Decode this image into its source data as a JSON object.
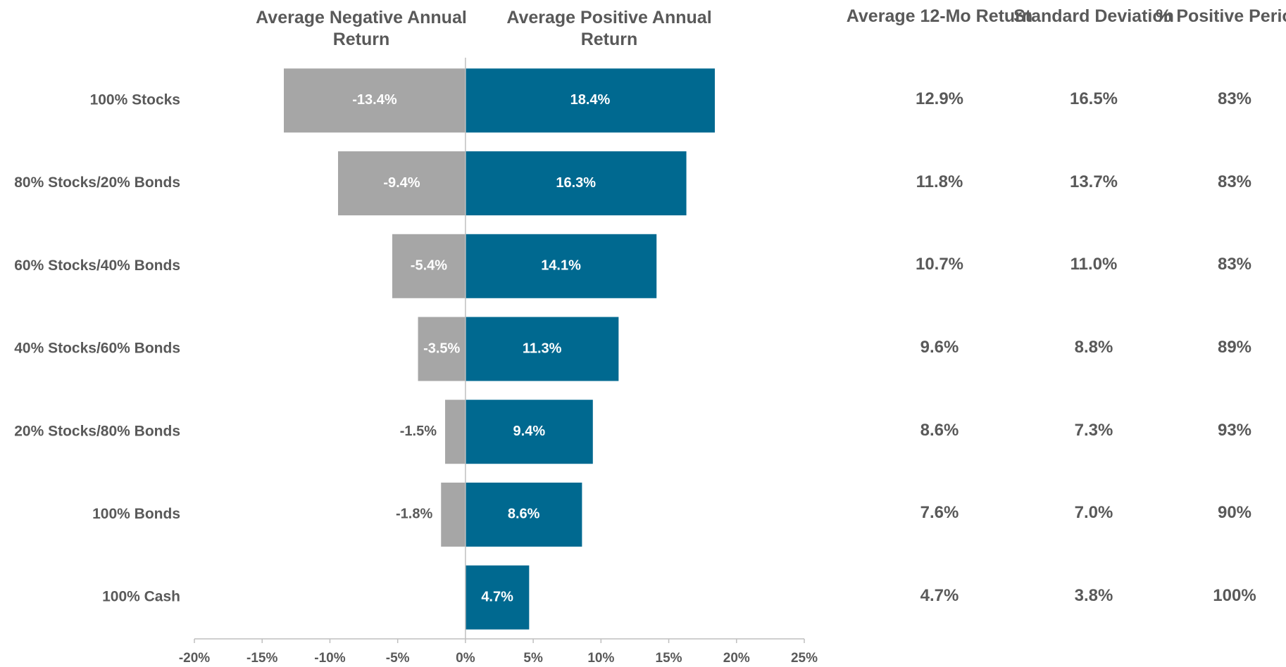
{
  "chart_data": {
    "type": "bar",
    "orientation": "horizontal",
    "categories": [
      "100% Stocks",
      "80% Stocks/20% Bonds",
      "60% Stocks/40% Bonds",
      "40% Stocks/60% Bonds",
      "20% Stocks/80% Bonds",
      "100% Bonds",
      "100% Cash"
    ],
    "series": [
      {
        "name": "Average Negative Annual Return",
        "color": "#a6a6a6",
        "values": [
          -13.4,
          -9.4,
          -5.4,
          -3.5,
          -1.5,
          -1.8,
          null
        ],
        "value_labels": [
          "-13.4%",
          "-9.4%",
          "-5.4%",
          "-3.5%",
          "-1.5%",
          "-1.8%",
          null
        ]
      },
      {
        "name": "Average Positive Annual Return",
        "color": "#006990",
        "values": [
          18.4,
          16.3,
          14.1,
          11.3,
          9.4,
          8.6,
          4.7
        ],
        "value_labels": [
          "18.4%",
          "16.3%",
          "14.1%",
          "11.3%",
          "9.4%",
          "8.6%",
          "4.7%"
        ]
      }
    ],
    "xlim": [
      -20,
      25
    ],
    "xticks": [
      {
        "value": -20,
        "label": "-20%"
      },
      {
        "value": -15,
        "label": "-15%"
      },
      {
        "value": -10,
        "label": "-10%"
      },
      {
        "value": -5,
        "label": "-5%"
      },
      {
        "value": 0,
        "label": "0%"
      },
      {
        "value": 5,
        "label": "5%"
      },
      {
        "value": 10,
        "label": "10%"
      },
      {
        "value": 15,
        "label": "15%"
      },
      {
        "value": 20,
        "label": "20%"
      },
      {
        "value": 25,
        "label": "25%"
      }
    ],
    "grid": false
  },
  "table": {
    "columns": [
      "Average 12-Mo Return",
      "Standard Deviation",
      "% Positive Periods"
    ],
    "rows": [
      [
        "12.9%",
        "16.5%",
        "83%"
      ],
      [
        "11.8%",
        "13.7%",
        "83%"
      ],
      [
        "10.7%",
        "11.0%",
        "83%"
      ],
      [
        "9.6%",
        "8.8%",
        "89%"
      ],
      [
        "8.6%",
        "7.3%",
        "93%"
      ],
      [
        "7.6%",
        "7.0%",
        "90%"
      ],
      [
        "4.7%",
        "3.8%",
        "100%"
      ]
    ]
  }
}
